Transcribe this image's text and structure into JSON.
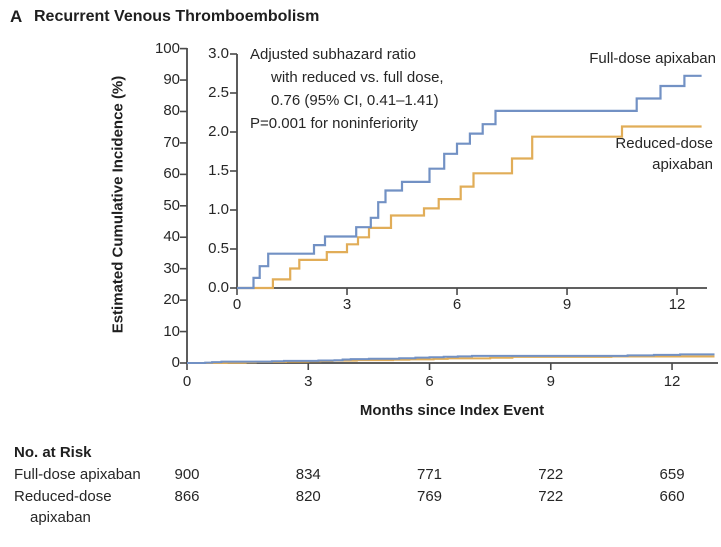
{
  "header": {
    "panel": "A",
    "title": "Recurrent Venous Thromboembolism"
  },
  "annotation": {
    "lines": [
      "Adjusted subhazard ratio",
      "with reduced vs. full dose,",
      "0.76 (95% CI, 0.41–1.41)",
      "P=0.001 for noninferiority"
    ]
  },
  "legend": {
    "full_dose": "Full-dose apixaban",
    "reduced_dose_line1": "Reduced-dose",
    "reduced_dose_line2": "apixaban"
  },
  "colors": {
    "full_dose": "#7291c4",
    "reduced_dose": "#e1ad58",
    "axis": "#4a4a4a",
    "text": "#262626"
  },
  "chart_data": {
    "type": "line",
    "step": true,
    "title": "Recurrent Venous Thromboembolism",
    "xlabel": "Months since Index Event",
    "ylabel": "Estimated Cumulative Incidence (%)",
    "main_axis": {
      "x_ticks": [
        0,
        3,
        6,
        9,
        12
      ],
      "y_ticks": [
        0,
        10,
        20,
        30,
        40,
        50,
        60,
        70,
        80,
        90,
        100
      ],
      "xlim": [
        0,
        13.1
      ],
      "ylim": [
        0,
        100
      ],
      "grid": false
    },
    "inset_axis": {
      "x_ticks": [
        0,
        3,
        6,
        9,
        12
      ],
      "y_tick_labels": [
        "0.0",
        "0.5",
        "1.0",
        "1.5",
        "2.0",
        "2.5",
        "3.0"
      ],
      "y_tick_values": [
        0,
        0.5,
        1.0,
        1.5,
        2.0,
        2.5,
        3.0
      ],
      "xlim": [
        0,
        12.8
      ],
      "ylim": [
        0,
        3.0
      ],
      "grid": false
    },
    "series": [
      {
        "name": "Full-dose apixaban",
        "color": "#7291c4",
        "end_month": 12.67,
        "points": [
          [
            0,
            0
          ],
          [
            0.45,
            0.13
          ],
          [
            0.62,
            0.28
          ],
          [
            0.85,
            0.44
          ],
          [
            2.1,
            0.55
          ],
          [
            2.4,
            0.66
          ],
          [
            3.25,
            0.78
          ],
          [
            3.65,
            0.9
          ],
          [
            3.85,
            1.1
          ],
          [
            4.05,
            1.25
          ],
          [
            4.5,
            1.36
          ],
          [
            5.25,
            1.53
          ],
          [
            5.65,
            1.72
          ],
          [
            6.0,
            1.85
          ],
          [
            6.35,
            1.98
          ],
          [
            6.7,
            2.1
          ],
          [
            7.05,
            2.27
          ],
          [
            10.9,
            2.43
          ],
          [
            11.55,
            2.59
          ],
          [
            12.2,
            2.72
          ]
        ]
      },
      {
        "name": "Reduced-dose apixaban",
        "color": "#e1ad58",
        "end_month": 12.67,
        "points": [
          [
            0,
            0
          ],
          [
            0.98,
            0.11
          ],
          [
            1.45,
            0.25
          ],
          [
            1.7,
            0.36
          ],
          [
            2.45,
            0.46
          ],
          [
            3.0,
            0.56
          ],
          [
            3.3,
            0.65
          ],
          [
            3.6,
            0.77
          ],
          [
            4.2,
            0.93
          ],
          [
            5.1,
            1.02
          ],
          [
            5.5,
            1.14
          ],
          [
            6.1,
            1.3
          ],
          [
            6.45,
            1.47
          ],
          [
            7.5,
            1.66
          ],
          [
            8.05,
            1.94
          ],
          [
            10.5,
            2.07
          ]
        ]
      }
    ]
  },
  "risk_table": {
    "header": "No. at Risk",
    "months": [
      0,
      3,
      6,
      9,
      12
    ],
    "rows": [
      {
        "label_lines": [
          "Full-dose apixaban"
        ],
        "values": [
          "900",
          "834",
          "771",
          "722",
          "659"
        ]
      },
      {
        "label_lines": [
          "Reduced-dose",
          "apixaban"
        ],
        "values": [
          "866",
          "820",
          "769",
          "722",
          "660"
        ]
      }
    ]
  }
}
